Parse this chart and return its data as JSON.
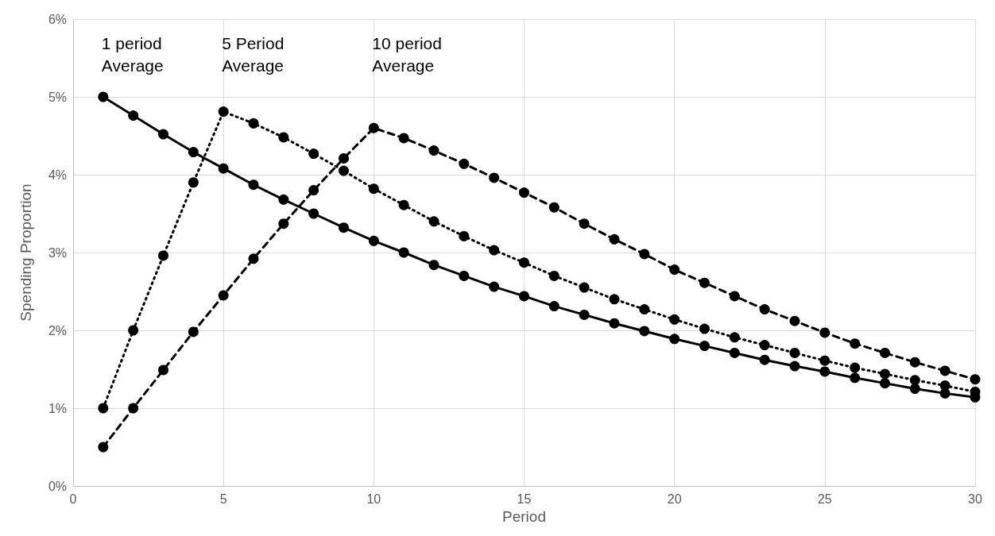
{
  "chart_data": {
    "type": "line",
    "xlabel": "Period",
    "ylabel": "Spending Proportion",
    "x": [
      1,
      2,
      3,
      4,
      5,
      6,
      7,
      8,
      9,
      10,
      11,
      12,
      13,
      14,
      15,
      16,
      17,
      18,
      19,
      20,
      21,
      22,
      23,
      24,
      25,
      26,
      27,
      28,
      29,
      30
    ],
    "series": [
      {
        "name": "1 period\nAverage",
        "color": "#000000",
        "line_style": "solid",
        "values": [
          5.0,
          4.76,
          4.52,
          4.29,
          4.08,
          3.87,
          3.68,
          3.5,
          3.32,
          3.15,
          3.0,
          2.84,
          2.7,
          2.56,
          2.44,
          2.31,
          2.2,
          2.09,
          1.99,
          1.89,
          1.8,
          1.71,
          1.62,
          1.54,
          1.47,
          1.39,
          1.32,
          1.25,
          1.19,
          1.14
        ]
      },
      {
        "name": "5 Period\nAverage",
        "color": "#000000",
        "line_style": "dotted",
        "values": [
          1.0,
          2.0,
          2.96,
          3.9,
          4.81,
          4.66,
          4.48,
          4.27,
          4.05,
          3.82,
          3.61,
          3.4,
          3.21,
          3.03,
          2.87,
          2.7,
          2.55,
          2.4,
          2.27,
          2.14,
          2.02,
          1.91,
          1.81,
          1.71,
          1.61,
          1.52,
          1.44,
          1.36,
          1.29,
          1.21
        ]
      },
      {
        "name": "10 period\nAverage",
        "color": "#000000",
        "line_style": "dashed",
        "values": [
          0.5,
          1.0,
          1.49,
          1.98,
          2.45,
          2.92,
          3.37,
          3.8,
          4.21,
          4.6,
          4.47,
          4.31,
          4.14,
          3.96,
          3.77,
          3.58,
          3.37,
          3.17,
          2.98,
          2.78,
          2.61,
          2.44,
          2.27,
          2.12,
          1.97,
          1.83,
          1.71,
          1.59,
          1.48,
          1.37
        ]
      }
    ],
    "xlim": [
      0,
      30
    ],
    "xticks": [
      0,
      5,
      10,
      15,
      20,
      25,
      30
    ],
    "ylim": [
      0,
      6
    ],
    "yticks": [
      {
        "value": 0,
        "label": "0%"
      },
      {
        "value": 1,
        "label": "1%"
      },
      {
        "value": 2,
        "label": "2%"
      },
      {
        "value": 3,
        "label": "3%"
      },
      {
        "value": 4,
        "label": "4%"
      },
      {
        "value": 5,
        "label": "5%"
      },
      {
        "value": 6,
        "label": "6%"
      }
    ],
    "grid": true,
    "legend": false,
    "marker": "circle"
  }
}
